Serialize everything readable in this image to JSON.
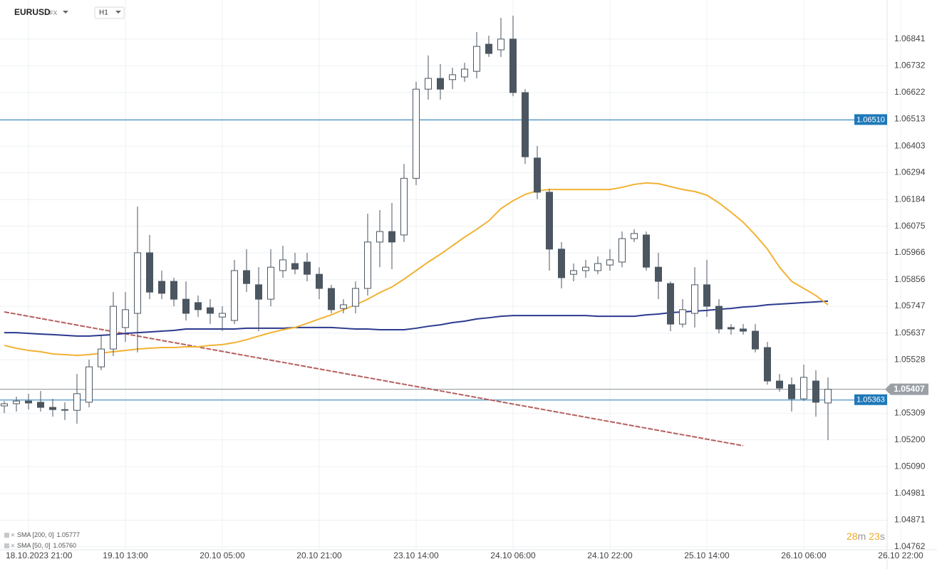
{
  "chart_data": {
    "type": "candlestick",
    "symbol": "EURUSD",
    "market": "FX",
    "timeframe": "H1",
    "categories": [
      null,
      null,
      "18.10.2023 21:00",
      null,
      null,
      null,
      null,
      null,
      null,
      null,
      "19.10 13:00",
      null,
      null,
      null,
      null,
      null,
      null,
      null,
      "20.10 05:00",
      null,
      null,
      null,
      null,
      null,
      null,
      null,
      "20.10 21:00",
      null,
      null,
      null,
      null,
      null,
      null,
      null,
      "23.10 14:00",
      null,
      null,
      null,
      null,
      null,
      null,
      null,
      "24.10 06:00",
      null,
      null,
      null,
      null,
      null,
      null,
      null,
      "24.10 22:00",
      null,
      null,
      null,
      null,
      null,
      null,
      null,
      "25.10 14:00",
      null,
      null,
      null,
      null,
      null,
      null,
      null,
      "26.10 06:00",
      null,
      null,
      null,
      null,
      null,
      null,
      null,
      "26.10 22:00"
    ],
    "open": [
      1.05339,
      1.05348,
      1.05359,
      1.05354,
      1.05333,
      1.05324,
      1.05321,
      1.05354,
      1.05499,
      1.05572,
      1.0566,
      1.05718,
      1.05966,
      1.05849,
      1.05849,
      1.05776,
      1.05762,
      1.05741,
      1.05703,
      1.05689,
      1.05893,
      1.05835,
      1.05776,
      1.05893,
      1.05922,
      1.05928,
      1.05878,
      1.0582,
      1.05738,
      1.05747,
      1.0582,
      1.0601,
      1.06053,
      1.06039,
      1.06271,
      1.06636,
      1.0668,
      1.06675,
      1.06686,
      1.06709,
      1.0682,
      1.06797,
      1.06841,
      1.06622,
      1.06354,
      1.06214,
      1.05981,
      1.05878,
      1.05893,
      1.05893,
      1.05916,
      1.05928,
      1.06024,
      1.06039,
      1.05907,
      1.0584,
      1.05674,
      1.05718,
      1.05835,
      1.05747,
      1.0566,
      1.05654,
      1.05645,
      1.05578,
      1.05441,
      1.05426,
      1.05368,
      1.05441,
      1.05351,
      null,
      null,
      null,
      null,
      null,
      null
    ],
    "high": [
      1.05359,
      1.05377,
      1.05389,
      1.054,
      1.05368,
      1.05354,
      1.0547,
      1.05528,
      1.05631,
      1.05805,
      1.05805,
      1.06155,
      1.06039,
      1.05893,
      1.05864,
      1.05849,
      1.05791,
      1.05776,
      1.05747,
      1.05937,
      1.05981,
      1.05907,
      1.05981,
      1.05995,
      1.05966,
      1.05966,
      1.05907,
      1.05835,
      1.05776,
      1.05849,
      1.06126,
      1.06141,
      1.0617,
      1.0633,
      1.06666,
      1.06774,
      1.06739,
      1.06724,
      1.06744,
      1.0687,
      1.06855,
      1.06928,
      1.06937,
      1.06636,
      1.06403,
      1.06228,
      1.0601,
      1.05922,
      1.05937,
      1.05951,
      1.05981,
      1.06053,
      1.06062,
      1.06053,
      1.05966,
      1.05849,
      1.05776,
      1.05907,
      1.05937,
      1.05776,
      1.05674,
      1.05674,
      1.05674,
      1.05601,
      1.0547,
      1.05456,
      1.05508,
      1.05485,
      1.05456,
      null,
      null,
      null,
      null,
      null,
      null
    ],
    "low": [
      1.0531,
      1.05316,
      1.05324,
      1.05316,
      1.05295,
      1.05281,
      1.05266,
      1.05333,
      1.05485,
      1.05543,
      1.05601,
      1.05558,
      1.05776,
      1.05776,
      1.05747,
      1.05689,
      1.05703,
      1.05674,
      1.05645,
      1.05674,
      1.05805,
      1.05645,
      1.05747,
      1.05864,
      1.05878,
      1.05849,
      1.05776,
      1.05718,
      1.05718,
      1.05718,
      1.05791,
      1.05907,
      1.05899,
      1.0601,
      1.06243,
      1.06593,
      1.06593,
      1.06636,
      1.06666,
      1.0668,
      1.06768,
      1.06768,
      1.06607,
      1.0633,
      1.06186,
      1.05893,
      1.0582,
      1.05849,
      1.05864,
      1.05878,
      1.05893,
      1.05907,
      1.0601,
      1.05893,
      1.05776,
      1.05645,
      1.0566,
      1.0566,
      1.05703,
      1.05636,
      1.05631,
      1.05631,
      1.05558,
      1.05426,
      1.05397,
      1.05316,
      1.05359,
      1.05295,
      1.05199,
      null,
      null,
      null,
      null,
      null,
      null
    ],
    "close": [
      1.05348,
      1.05359,
      1.05351,
      1.05333,
      1.05324,
      1.05321,
      1.05389,
      1.05499,
      1.05572,
      1.05747,
      1.05733,
      1.05966,
      1.05805,
      1.058,
      1.05776,
      1.05718,
      1.05733,
      1.05718,
      1.05718,
      1.05893,
      1.0584,
      1.05776,
      1.05907,
      1.05937,
      1.05899,
      1.05878,
      1.0582,
      1.05733,
      1.05753,
      1.0582,
      1.0601,
      1.06053,
      1.0601,
      1.06271,
      1.06636,
      1.0668,
      1.06636,
      1.06695,
      1.06718,
      1.06811,
      1.06782,
      1.06841,
      1.06622,
      1.06359,
      1.06214,
      1.05981,
      1.05864,
      1.05893,
      1.05907,
      1.05922,
      1.05937,
      1.06024,
      1.06045,
      1.05907,
      1.05849,
      1.05674,
      1.05733,
      1.05835,
      1.05747,
      1.05654,
      1.05654,
      1.05645,
      1.05572,
      1.05441,
      1.05412,
      1.05368,
      1.05456,
      1.05354,
      1.05407,
      null,
      null,
      null,
      null,
      null,
      null
    ],
    "up_color": "#ffffff",
    "down_color": "#4b5661",
    "wick_color": "#4b5661",
    "ylim": [
      1.0475,
      1.07001
    ],
    "yticks": [
      1.06841,
      1.06732,
      1.06622,
      1.06513,
      1.06403,
      1.06294,
      1.06184,
      1.06075,
      1.05966,
      1.05856,
      1.05747,
      1.05637,
      1.05528,
      1.05309,
      {
        "value": 1.052,
        "label": "1.05200"
      },
      {
        "value": 1.0509,
        "label": "1.05090"
      },
      1.04981,
      1.04871,
      1.04762
    ],
    "grid": true,
    "series": [
      {
        "name": "SMA [200, 0]",
        "color": "#2c3a8f",
        "last": {
          "value": 1.05777,
          "label": "1.05777"
        },
        "values": [
          1.05639,
          1.05639,
          1.05636,
          1.05633,
          1.05631,
          1.05628,
          1.05625,
          1.05625,
          1.05628,
          1.05631,
          1.05636,
          1.05639,
          1.05642,
          1.05645,
          1.05648,
          1.05654,
          1.05654,
          1.05654,
          1.05654,
          1.05654,
          1.05657,
          1.05657,
          1.05657,
          1.05657,
          1.0566,
          1.0566,
          1.0566,
          1.0566,
          1.05657,
          1.05654,
          1.05654,
          1.05651,
          1.05651,
          1.05651,
          1.05657,
          1.05665,
          1.05671,
          1.0568,
          1.05686,
          1.05695,
          1.057,
          1.05706,
          1.05709,
          1.05709,
          1.05709,
          1.05709,
          1.05709,
          1.05709,
          1.05709,
          1.05706,
          1.05706,
          1.05706,
          1.05706,
          1.05712,
          1.05715,
          1.05721,
          1.05724,
          1.05727,
          1.0573,
          1.05735,
          1.05738,
          1.05744,
          1.05747,
          1.05753,
          1.05756,
          1.05759,
          1.05762,
          1.05765,
          1.05768,
          null,
          null,
          null,
          null,
          null,
          null
        ]
      },
      {
        "name": "SMA [50, 0]",
        "color": "#f2b233",
        "last": {
          "value": 1.0576,
          "label": "1.05760"
        },
        "values": [
          1.05587,
          1.05575,
          1.05566,
          1.05561,
          1.05552,
          1.05549,
          1.05546,
          1.05549,
          1.05555,
          1.05561,
          1.05566,
          1.05572,
          1.05575,
          1.05578,
          1.05578,
          1.05581,
          1.05581,
          1.05587,
          1.0559,
          1.05598,
          1.0561,
          1.05625,
          1.05639,
          1.05651,
          1.0566,
          1.05677,
          1.05695,
          1.05712,
          1.05733,
          1.05753,
          1.05776,
          1.05803,
          1.05826,
          1.05858,
          1.05893,
          1.05928,
          1.0596,
          1.05995,
          1.0603,
          1.06062,
          1.06097,
          1.06147,
          1.06179,
          1.06205,
          1.0622,
          1.06225,
          1.06225,
          1.06225,
          1.06225,
          1.06225,
          1.06225,
          1.06234,
          1.06246,
          1.06252,
          1.06249,
          1.06237,
          1.06225,
          1.06217,
          1.06202,
          1.0617,
          1.06132,
          1.06091,
          1.06039,
          1.05981,
          1.05907,
          1.05849,
          1.0582,
          1.05791,
          1.05753,
          null,
          null,
          null,
          null,
          null,
          null
        ]
      }
    ],
    "levels": [
      {
        "value": 1.0651,
        "label": "1.06510",
        "color": "#1f78b8"
      },
      {
        "value": 1.05363,
        "label": "1.05363",
        "color": "#1f78b8"
      }
    ],
    "last_price": {
      "value": 1.05407,
      "label": "1.05407",
      "color": "#9aa0a6"
    },
    "trend_line": {
      "color": "#b5605f",
      "x": [
        0,
        61
      ],
      "values": [
        1.05724,
        1.05176
      ]
    },
    "timer": {
      "minutes": 28,
      "minutes_unit": "m",
      "seconds": 23,
      "seconds_unit": "s"
    }
  }
}
